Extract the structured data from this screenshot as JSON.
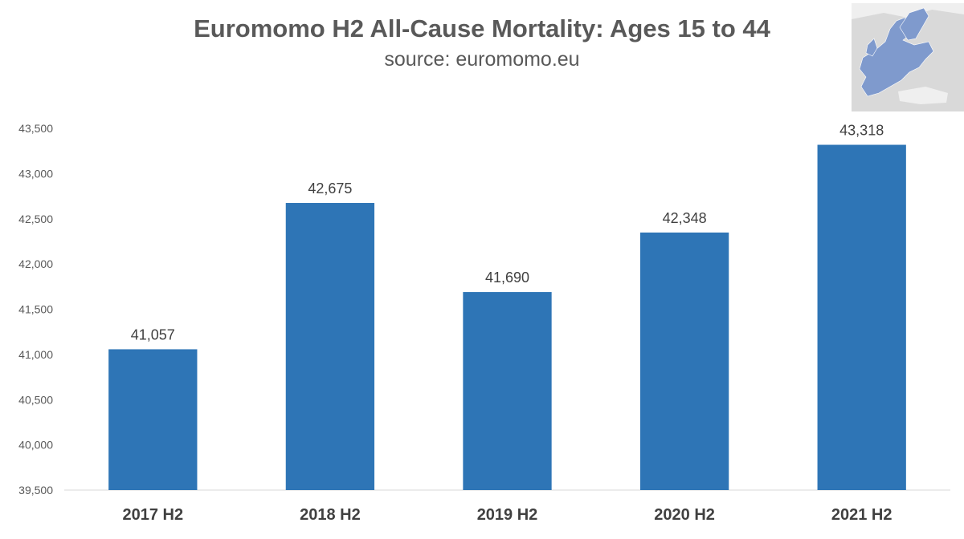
{
  "chart_data": {
    "type": "bar",
    "title": "Euromomo H2 All-Cause Mortality: Ages 15 to 44",
    "subtitle": "source: euromomo.eu",
    "categories": [
      "2017 H2",
      "2018 H2",
      "2019 H2",
      "2020 H2",
      "2021 H2"
    ],
    "values": [
      41057,
      42675,
      41690,
      42348,
      43318
    ],
    "data_labels": [
      "41,057",
      "42,675",
      "41,690",
      "42,348",
      "43,318"
    ],
    "ylim": [
      39500,
      43500
    ],
    "yticks": [
      39500,
      40000,
      40500,
      41000,
      41500,
      42000,
      42500,
      43000,
      43500
    ],
    "ytick_labels": [
      "39,500",
      "40,000",
      "40,500",
      "41,000",
      "41,500",
      "42,000",
      "42,500",
      "43,000",
      "43,500"
    ],
    "xlabel": "",
    "ylabel": "",
    "grid": false,
    "bar_color": "#2E75B6"
  },
  "decoration": {
    "map_icon": "europe-map-icon",
    "land_color": "#D9D9D9",
    "highlight_color": "#7F9ACD"
  }
}
